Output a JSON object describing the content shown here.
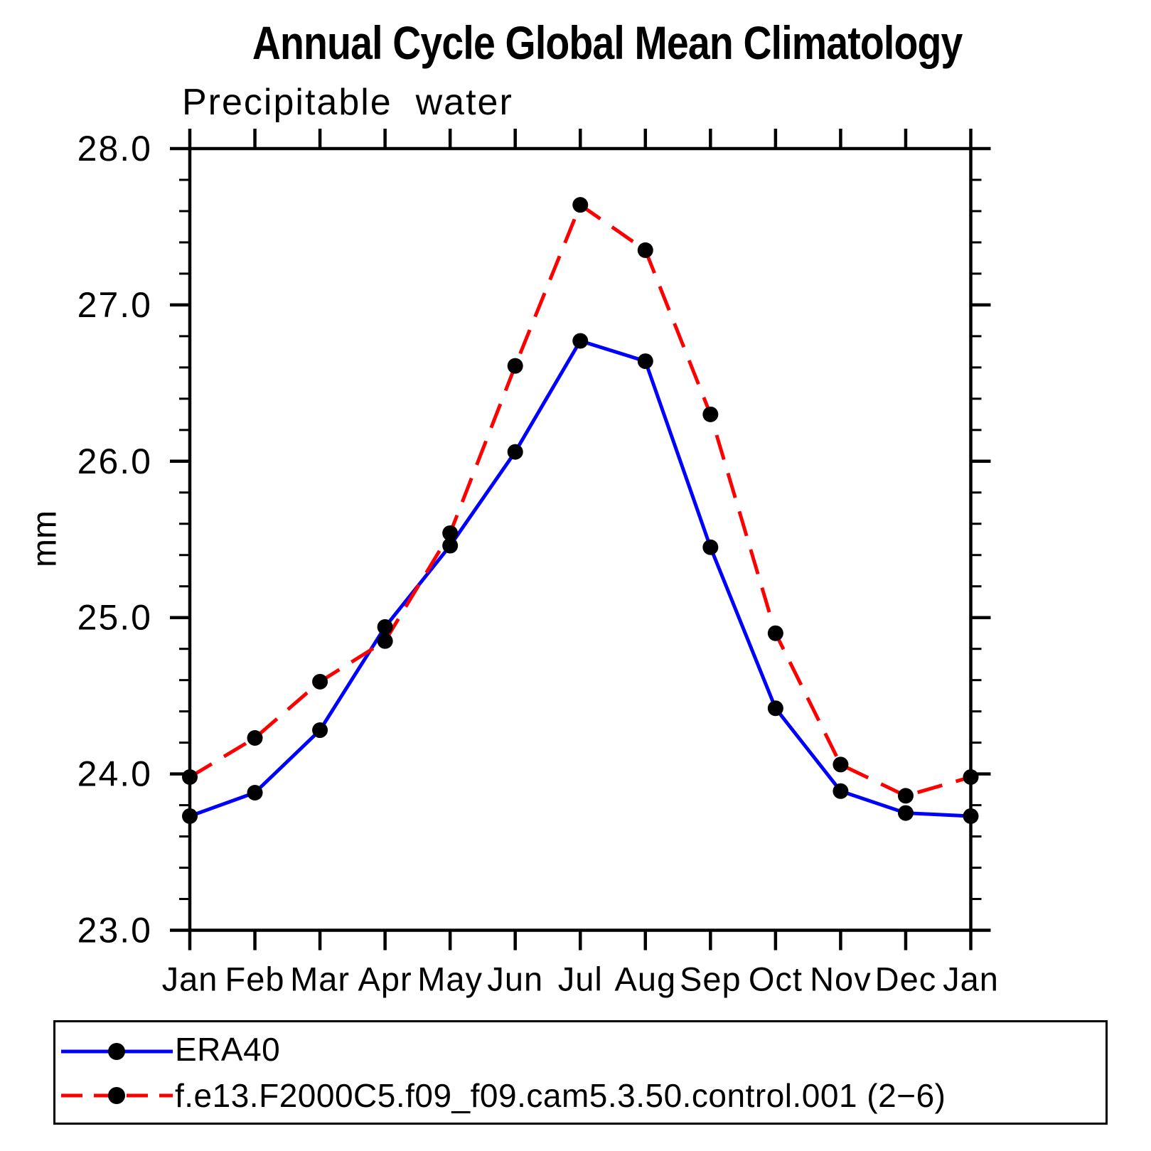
{
  "title": "Annual Cycle Global Mean Climatology",
  "subtitle": "Precipitable  water",
  "y_axis_title": "mm",
  "colors": {
    "era40_line": "#0000ff",
    "model_line": "#ff0000",
    "marker": "#000000",
    "axis": "#000000",
    "background": "#ffffff"
  },
  "legend": [
    {
      "label": "ERA40",
      "color": "#0000ff",
      "line_style": "solid",
      "marker": "filled-circle"
    },
    {
      "label": "f.e13.F2000C5.f09_f09.cam5.3.50.control.001 (2−6)",
      "color": "#ff0000",
      "line_style": "dashed",
      "marker": "filled-circle"
    }
  ],
  "chart_data": {
    "type": "line",
    "title": "Precipitable water",
    "suptitle": "Annual Cycle Global Mean Climatology",
    "xlabel": "",
    "ylabel": "mm",
    "categories": [
      "Jan",
      "Feb",
      "Mar",
      "Apr",
      "May",
      "Jun",
      "Jul",
      "Aug",
      "Sep",
      "Oct",
      "Nov",
      "Dec",
      "Jan"
    ],
    "series": [
      {
        "name": "ERA40",
        "color": "#0000ff",
        "line_style": "solid",
        "marker": "filled-circle",
        "values": [
          23.73,
          23.88,
          24.28,
          24.94,
          25.46,
          26.06,
          26.77,
          26.64,
          25.45,
          24.42,
          23.89,
          23.75,
          23.73
        ]
      },
      {
        "name": "f.e13.F2000C5.f09_f09.cam5.3.50.control.001 (2−6)",
        "color": "#ff0000",
        "line_style": "dashed",
        "marker": "filled-circle",
        "values": [
          23.98,
          24.23,
          24.59,
          24.85,
          25.54,
          26.61,
          27.64,
          27.35,
          26.3,
          24.9,
          24.06,
          23.86,
          23.98
        ]
      }
    ],
    "ylim": [
      23.0,
      28.0
    ],
    "ytick_labels": [
      "23.0",
      "24.0",
      "25.0",
      "26.0",
      "27.0",
      "28.0"
    ],
    "ytick_major_values": [
      23.0,
      24.0,
      25.0,
      26.0,
      27.0,
      28.0
    ],
    "ytick_minor_step": 0.2,
    "grid": false,
    "legend_position": "bottom-box"
  }
}
